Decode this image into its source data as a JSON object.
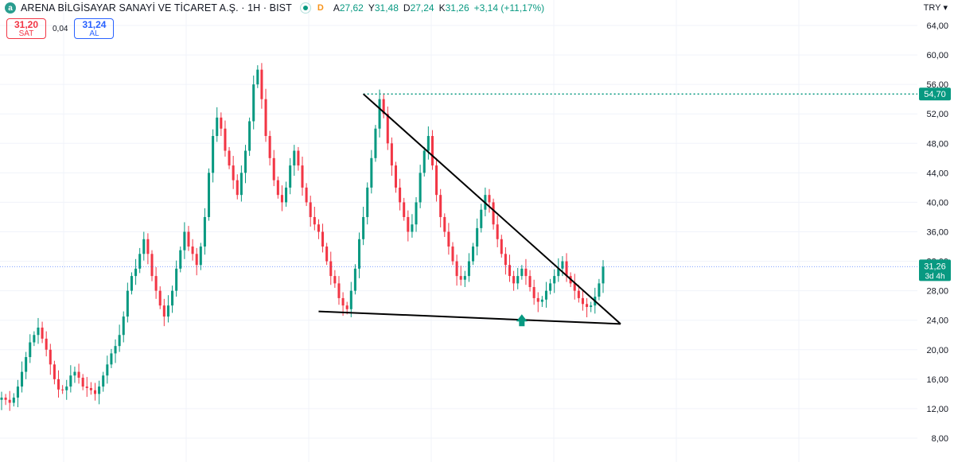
{
  "header": {
    "logo_letter": "a",
    "title": "ARENA BİLGİSAYAR SANAYİ VE TİCARET A.Ş. · 1H · BIST",
    "d_badge": "D",
    "ohlc": [
      {
        "label": "A",
        "value": "27,62"
      },
      {
        "label": "Y",
        "value": "31,48"
      },
      {
        "label": "D",
        "value": "27,24"
      },
      {
        "label": "K",
        "value": "31,26"
      }
    ],
    "change": "+3,14 (+11,17%)",
    "currency": "TRY"
  },
  "order": {
    "sell_price": "31,20",
    "sell_label": "SAT",
    "spread": "0,04",
    "buy_price": "31,24",
    "buy_label": "AL"
  },
  "colors": {
    "up": "#089981",
    "down": "#f23645",
    "last_price_line": "#2962ff",
    "resistance_line": "#089981",
    "trendline": "#000000",
    "grid": "#f0f3fa"
  },
  "chart_data": {
    "type": "candlestick",
    "ylim": [
      7,
      65
    ],
    "y_ticks": [
      8,
      12,
      16,
      20,
      24,
      28,
      32,
      36,
      40,
      44,
      48,
      52,
      56,
      60,
      64
    ],
    "y_tick_labels": [
      "8,00",
      "12,00",
      "16,00",
      "20,00",
      "24,00",
      "28,00",
      "32,00",
      "36,00",
      "40,00",
      "44,00",
      "48,00",
      "52,00",
      "56,00",
      "60,00",
      "64,00"
    ],
    "close_path": [
      13.5,
      13.2,
      12.8,
      13.5,
      15,
      17,
      19,
      21,
      22,
      23,
      21.5,
      20,
      18,
      16,
      14.6,
      14.5,
      15,
      16.5,
      17,
      16.2,
      15,
      14.8,
      14.5,
      14,
      15,
      16.5,
      18,
      19.5,
      20.5,
      22,
      24.5,
      28,
      30,
      31,
      33,
      35,
      33,
      30,
      28,
      26,
      24.5,
      26,
      28,
      31,
      33.5,
      36,
      34,
      33,
      31.5,
      34,
      38,
      44,
      49,
      51.5,
      50,
      47,
      45,
      43,
      41,
      44,
      47,
      51,
      56,
      58,
      54,
      49,
      46,
      43,
      41,
      40,
      42,
      45,
      47,
      45,
      42,
      40,
      38,
      37,
      36,
      34,
      32,
      30,
      29,
      27,
      26,
      25.5,
      28,
      31,
      35,
      38,
      42,
      46,
      50,
      54,
      52,
      48,
      45,
      42,
      40,
      38,
      36,
      37,
      40,
      44,
      47,
      49,
      45,
      41,
      38,
      36,
      34,
      32,
      30,
      29.5,
      30,
      32,
      34,
      36.5,
      39,
      41,
      40,
      37,
      35,
      33,
      31.5,
      30,
      29,
      30,
      31,
      30,
      28.5,
      27,
      26.5,
      26.8,
      28,
      29,
      30,
      31,
      32,
      30,
      29,
      28,
      27,
      26.2,
      25.8,
      26,
      27.2,
      29,
      31.26
    ],
    "wick_offsets": [
      0.8,
      0.5,
      1.2,
      0.6,
      0.9,
      1.4,
      0.7,
      1.1,
      0.5,
      1.3,
      0.8,
      1.0
    ],
    "resistance_level": 54.7,
    "resistance_label": "54,70",
    "last_price": 31.26,
    "last_price_label": "31,26",
    "last_price_countdown": "3d 4h",
    "triangle": {
      "upper_start": {
        "bar": 89,
        "price": 54.7
      },
      "apex": {
        "bar": 134,
        "price": 23.5
      },
      "lower_start": {
        "bar": 78,
        "price": 25.2
      }
    },
    "signal_arrow": {
      "bar": 128,
      "price": 23.3,
      "direction": "up"
    }
  }
}
